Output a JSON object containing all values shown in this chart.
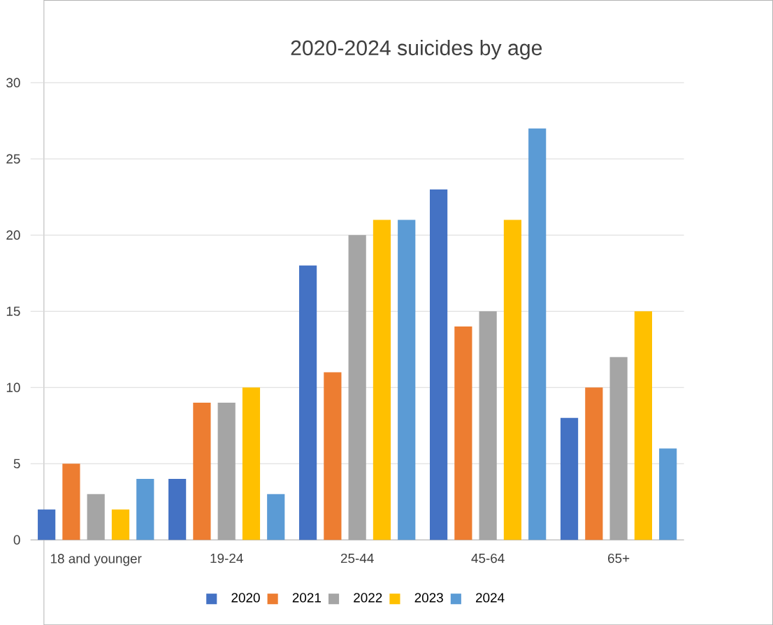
{
  "chart_data": {
    "type": "bar",
    "title": "2020-2024 suicides by age",
    "categories": [
      "18 and younger",
      "19-24",
      "25-44",
      "45-64",
      "65+"
    ],
    "series": [
      {
        "name": "2020",
        "color": "#4472c4",
        "values": [
          2,
          4,
          18,
          23,
          8
        ]
      },
      {
        "name": "2021",
        "color": "#ed7d31",
        "values": [
          5,
          9,
          11,
          14,
          10
        ]
      },
      {
        "name": "2022",
        "color": "#a5a5a5",
        "values": [
          3,
          9,
          20,
          15,
          12
        ]
      },
      {
        "name": "2023",
        "color": "#ffc000",
        "values": [
          2,
          10,
          21,
          21,
          15
        ]
      },
      {
        "name": "2024",
        "color": "#5b9bd5",
        "values": [
          4,
          3,
          21,
          27,
          6
        ]
      }
    ],
    "ylim": [
      0,
      30
    ],
    "yticks": [
      0,
      5,
      10,
      15,
      20,
      25,
      30
    ],
    "grid": "y",
    "legend": "bottom"
  }
}
